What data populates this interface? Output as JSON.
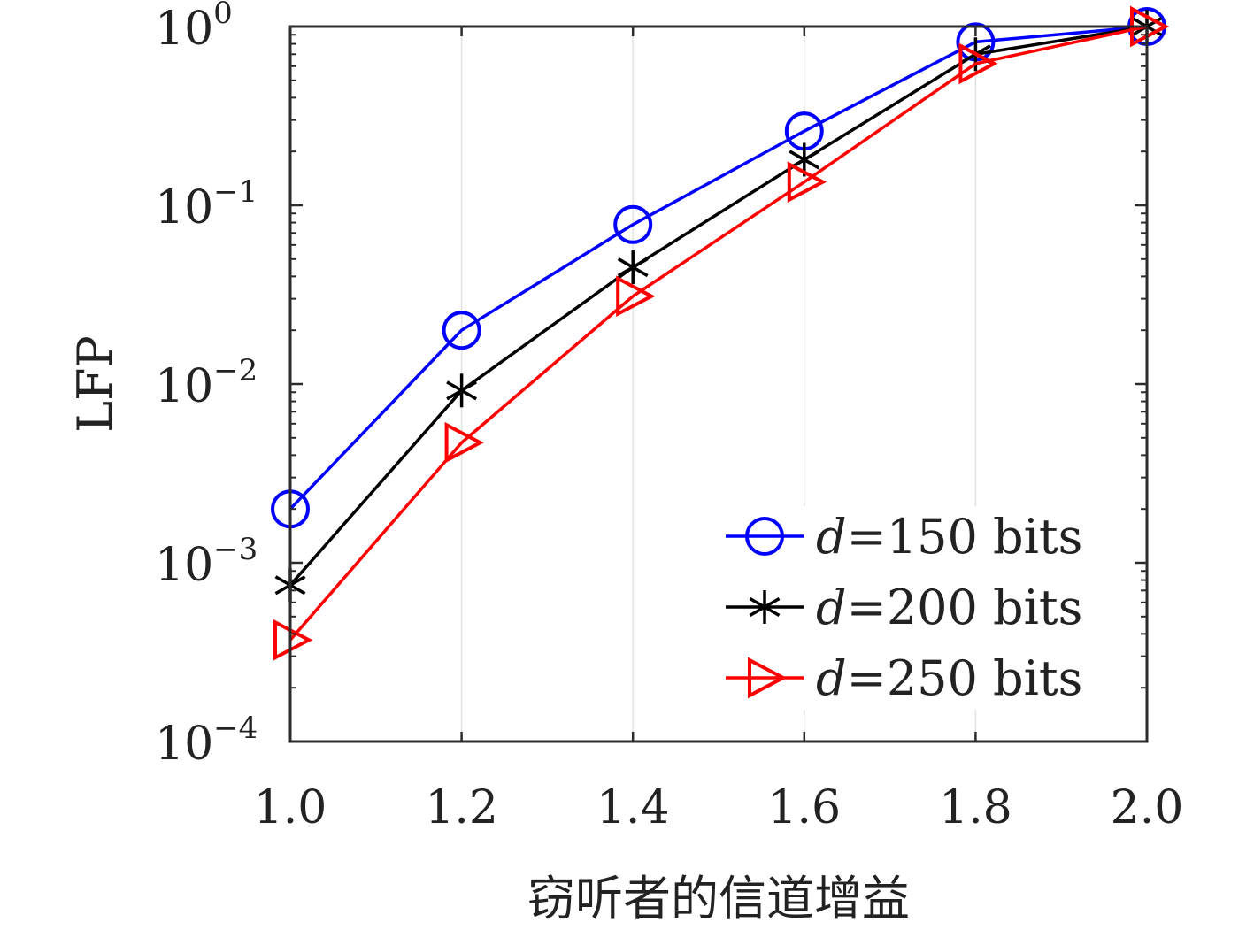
{
  "chart_data": {
    "type": "line",
    "xlabel": "窃听者的信道增益",
    "ylabel": "LFP",
    "yscale": "log",
    "xlim": [
      1.0,
      2.0
    ],
    "ylim": [
      0.0001,
      1
    ],
    "xticks": [
      1.0,
      1.2,
      1.4,
      1.6,
      1.8,
      2.0
    ],
    "xtick_labels": [
      "1.0",
      "1.2",
      "1.4",
      "1.6",
      "1.8",
      "2.0"
    ],
    "yticks": [
      0.0001,
      0.001,
      0.01,
      0.1,
      1
    ],
    "ytick_labels": [
      {
        "base": "10",
        "exp": "−4"
      },
      {
        "base": "10",
        "exp": "−3"
      },
      {
        "base": "10",
        "exp": "−2"
      },
      {
        "base": "10",
        "exp": "−1"
      },
      {
        "base": "10",
        "exp": "0"
      }
    ],
    "grid": "x-major",
    "legend_position": "bottom-right",
    "x": [
      1.0,
      1.2,
      1.4,
      1.6,
      1.8,
      2.0
    ],
    "series": [
      {
        "name": "d=150 bits",
        "name_var": "d",
        "name_rest": "=150 bits",
        "color": "#0000ff",
        "marker": "circle",
        "values": [
          0.002,
          0.02,
          0.078,
          0.26,
          0.82,
          1.0
        ]
      },
      {
        "name": "d=200 bits",
        "name_var": "d",
        "name_rest": "=200 bits",
        "color": "#000000",
        "marker": "asterisk",
        "values": [
          0.00075,
          0.0092,
          0.045,
          0.18,
          0.7,
          1.0
        ]
      },
      {
        "name": "d=250 bits",
        "name_var": "d",
        "name_rest": "=250 bits",
        "color": "#ff0000",
        "marker": "triangle-right",
        "values": [
          0.00037,
          0.0047,
          0.031,
          0.135,
          0.62,
          1.0
        ]
      }
    ]
  }
}
